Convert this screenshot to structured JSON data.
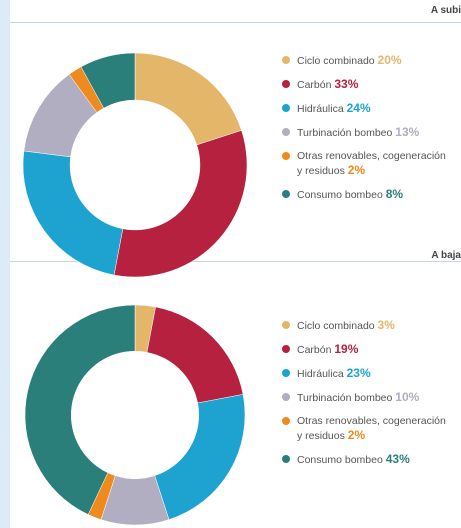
{
  "chart_data": [
    {
      "type": "pie",
      "donut": true,
      "title": "A subi",
      "categories": [
        "Ciclo combinado",
        "Carbón",
        "Hidráulica",
        "Turbinación bombeo",
        "Otras renovables, cogeneración y residuos",
        "Consumo bombeo"
      ],
      "values": [
        20,
        33,
        24,
        13,
        2,
        8
      ],
      "value_labels": [
        "20%",
        "33%",
        "24%",
        "13%",
        "2%",
        "8%"
      ],
      "colors": [
        "#e3b66a",
        "#b5213f",
        "#1ea3d0",
        "#b0aec0",
        "#ef8a1f",
        "#2b7f7b"
      ]
    },
    {
      "type": "pie",
      "donut": true,
      "title": "A baja",
      "categories": [
        "Ciclo combinado",
        "Carbón",
        "Hidráulica",
        "Turbinación bombeo",
        "Otras renovables, cogeneración y residuos",
        "Consumo bombeo"
      ],
      "values": [
        3,
        19,
        23,
        10,
        2,
        43
      ],
      "value_labels": [
        "3%",
        "19%",
        "23%",
        "10%",
        "2%",
        "43%"
      ],
      "colors": [
        "#e3b66a",
        "#b5213f",
        "#1ea3d0",
        "#b0aec0",
        "#ef8a1f",
        "#2b7f7b"
      ]
    }
  ]
}
